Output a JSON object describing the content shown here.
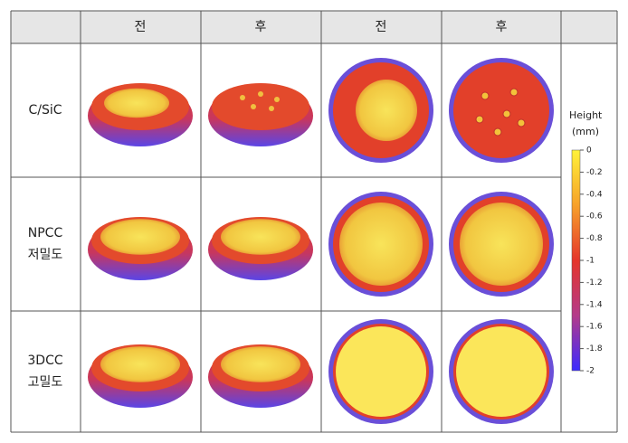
{
  "header": [
    "",
    "전",
    "후",
    "전",
    "후",
    ""
  ],
  "rows": [
    {
      "label": [
        "C/SiC"
      ]
    },
    {
      "label": [
        "NPCC",
        "저밀도"
      ]
    },
    {
      "label": [
        "3DCC",
        "고밀도"
      ]
    }
  ],
  "colorbar": {
    "title": "Height",
    "unit": "(mm)",
    "ticks": [
      0,
      -0.2,
      -0.4,
      -0.6,
      -0.8,
      -1,
      -1.2,
      -1.4,
      -1.6,
      -1.8,
      -2
    ]
  }
}
